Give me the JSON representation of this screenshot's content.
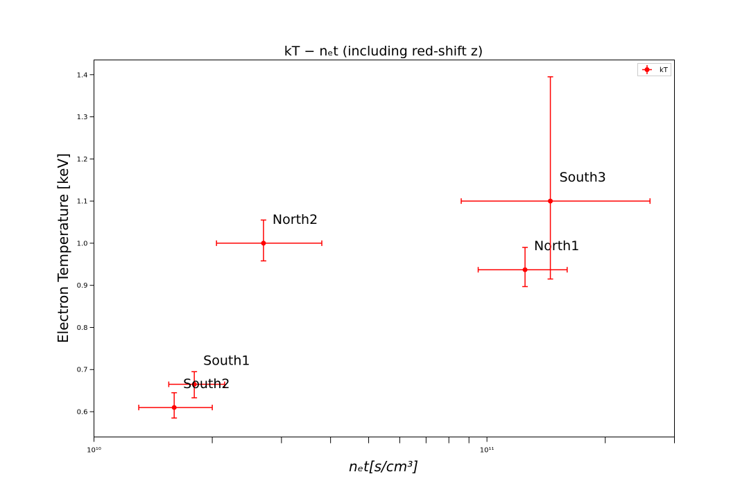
{
  "chart_data": {
    "type": "scatter",
    "title": "kT − nₑt (including red-shift z)",
    "xlabel": "nₑt[s/cm³]",
    "ylabel": "Electron Temperature [keV]",
    "xscale": "log",
    "xlim": [
      10000000000.0,
      300000000000.0
    ],
    "ylim": [
      0.54,
      1.435
    ],
    "x_major_ticks": [
      {
        "value": 10000000000.0,
        "label": "10¹⁰"
      },
      {
        "value": 100000000000.0,
        "label": "10¹¹"
      }
    ],
    "x_minor_ticks": [
      20000000000.0,
      30000000000.0,
      40000000000.0,
      50000000000.0,
      60000000000.0,
      70000000000.0,
      80000000000.0,
      90000000000.0,
      200000000000.0,
      300000000000.0
    ],
    "y_ticks": [
      0.6,
      0.7,
      0.8,
      0.9,
      1.0,
      1.1,
      1.2,
      1.3,
      1.4
    ],
    "y_tick_labels": [
      "0.6",
      "0.7",
      "0.8",
      "0.9",
      "1.0",
      "1.1",
      "1.2",
      "1.3",
      "1.4"
    ],
    "legend": {
      "position": "top-right",
      "entries": [
        "kT"
      ]
    },
    "grid": false,
    "color": "#ff0000",
    "series": [
      {
        "name": "kT",
        "points": [
          {
            "label": "South1",
            "x": 18000000000.0,
            "x_lo": 15500000000.0,
            "x_hi": 21500000000.0,
            "y": 0.665,
            "y_lo": 0.633,
            "y_hi": 0.695
          },
          {
            "label": "South2",
            "x": 16000000000.0,
            "x_lo": 13000000000.0,
            "x_hi": 20000000000.0,
            "y": 0.61,
            "y_lo": 0.585,
            "y_hi": 0.645
          },
          {
            "label": "North2",
            "x": 27000000000.0,
            "x_lo": 20500000000.0,
            "x_hi": 38000000000.0,
            "y": 1.0,
            "y_lo": 0.958,
            "y_hi": 1.055
          },
          {
            "label": "North1",
            "x": 125000000000.0,
            "x_lo": 95000000000.0,
            "x_hi": 160000000000.0,
            "y": 0.937,
            "y_lo": 0.897,
            "y_hi": 0.99
          },
          {
            "label": "South3",
            "x": 145000000000.0,
            "x_lo": 86000000000.0,
            "x_hi": 260000000000.0,
            "y": 1.1,
            "y_lo": 0.915,
            "y_hi": 1.395
          }
        ]
      }
    ]
  }
}
